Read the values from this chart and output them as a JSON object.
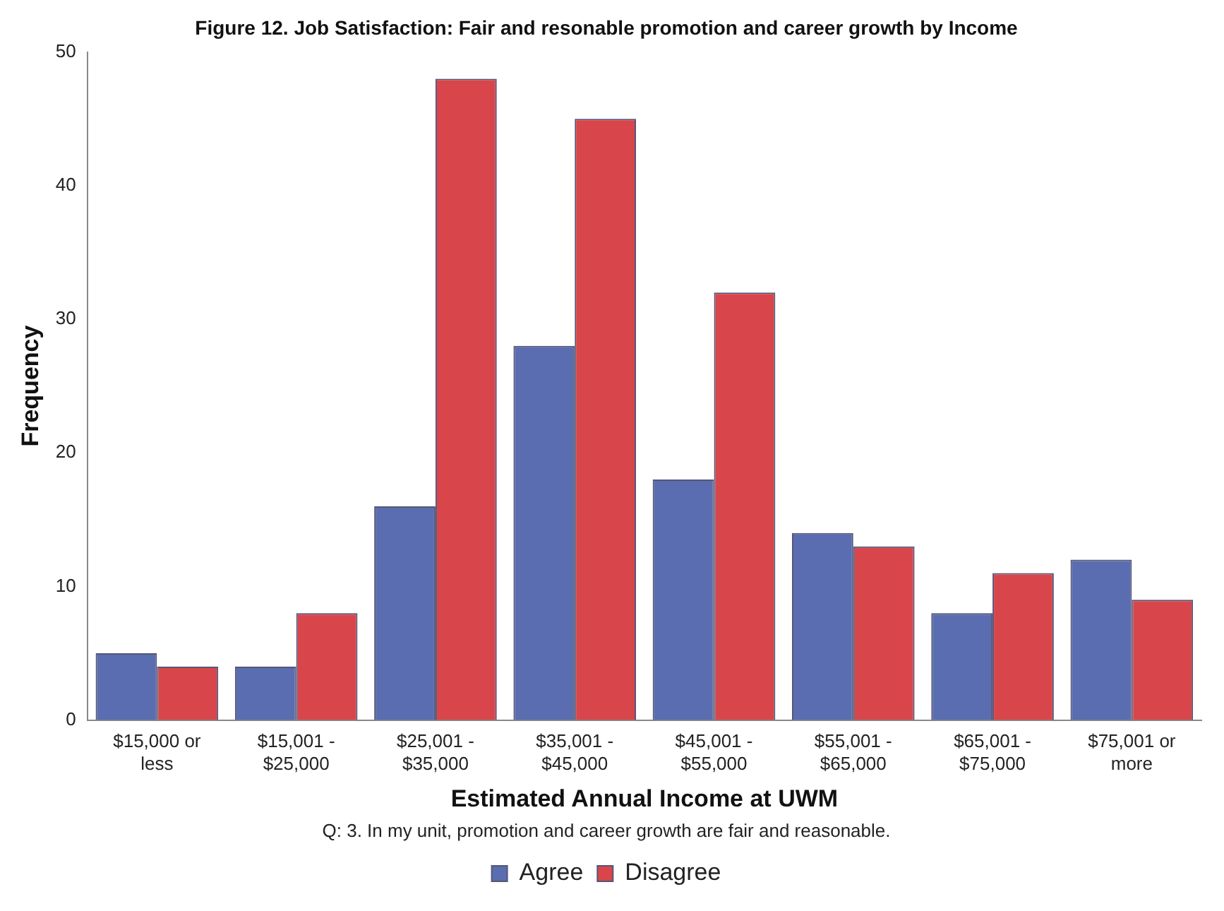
{
  "chart_data": {
    "type": "bar",
    "title": "Figure 12. Job Satisfaction: Fair and resonable promotion and career growth by Income",
    "xlabel": "Estimated Annual Income at UWM",
    "ylabel": "Frequency",
    "legend_title": "Q: 3. In my unit, promotion and career growth are fair and reasonable.",
    "categories": [
      "$15,000 or less",
      "$15,001 - $25,000",
      "$25,001 - $35,000",
      "$35,001 - $45,000",
      "$45,001 - $55,000",
      "$55,001 - $65,000",
      "$65,001 - $75,000",
      "$75,001 or more"
    ],
    "series": [
      {
        "name": "Agree",
        "color": "#5a6db0",
        "values": [
          5,
          4,
          16,
          28,
          18,
          14,
          8,
          12
        ]
      },
      {
        "name": "Disagree",
        "color": "#d8464b",
        "values": [
          4,
          8,
          48,
          45,
          32,
          13,
          11,
          9
        ]
      }
    ],
    "ylim": [
      0,
      50
    ],
    "yticks": [
      0,
      10,
      20,
      30,
      40,
      50
    ],
    "grid": false,
    "legend": "bottom"
  }
}
